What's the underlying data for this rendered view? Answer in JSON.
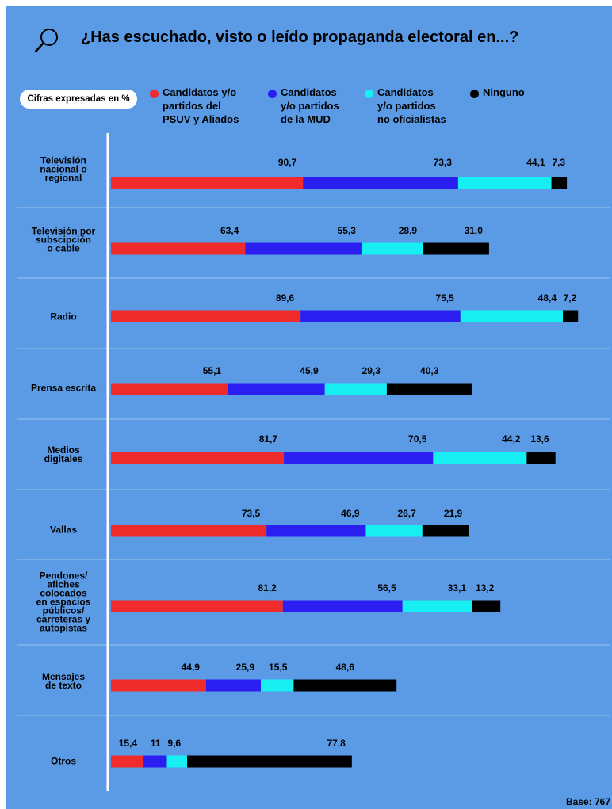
{
  "title": "¿Has escuchado, visto o leído propaganda electoral en...?",
  "units_note": "Cifras expresadas en %",
  "base_note": "Base: 767",
  "icons": {
    "search": "search-icon"
  },
  "chart_data": {
    "type": "bar",
    "orientation": "horizontal",
    "stacked": true,
    "title": "¿Has escuchado, visto o leído propaganda electoral en...?",
    "categories": [
      "Televisión\nnacional o\nregional",
      "Televisión por\nsubscipción\no cable",
      "Radio",
      "Prensa escrita",
      "Medios\ndigitales",
      "Vallas",
      "Pendones/\nafiches\ncolocados\nen espacios\npúblicos/\ncarreteras y\nautopistas",
      "Mensajes\nde texto",
      "Otros"
    ],
    "series": [
      {
        "name": "Candidatos y/o\npartidos del\nPSUV y Aliados",
        "color": "#F02B2B",
        "values": [
          90.7,
          63.4,
          89.6,
          55.1,
          81.7,
          73.5,
          81.2,
          44.9,
          15.4
        ]
      },
      {
        "name": "Candidatos\ny/o partidos\nde la MUD",
        "color": "#2A1FF0",
        "values": [
          73.3,
          55.3,
          75.5,
          45.9,
          70.5,
          46.9,
          56.5,
          25.9,
          11
        ]
      },
      {
        "name": "Candidatos\ny/o partidos\nno oficialistas",
        "color": "#16EEF2",
        "values": [
          44.1,
          28.9,
          48.4,
          29.3,
          44.2,
          26.7,
          33.1,
          15.5,
          9.6
        ]
      },
      {
        "name": "Ninguno",
        "color": "#000000",
        "values": [
          7.3,
          31.0,
          7.2,
          40.3,
          13.6,
          21.9,
          13.2,
          48.6,
          77.8
        ]
      }
    ],
    "value_labels": [
      [
        "90,7",
        "73,3",
        "44,1",
        "7,3"
      ],
      [
        "63,4",
        "55,3",
        "28,9",
        "31,0"
      ],
      [
        "89,6",
        "75,5",
        "48,4",
        "7,2"
      ],
      [
        "55,1",
        "45,9",
        "29,3",
        "40,3"
      ],
      [
        "81,7",
        "70,5",
        "44,2",
        "13,6"
      ],
      [
        "73,5",
        "46,9",
        "26,7",
        "21,9"
      ],
      [
        "81,2",
        "56,5",
        "33,1",
        "13,2"
      ],
      [
        "44,9",
        "25,9",
        "15,5",
        "48,6"
      ],
      [
        "15,4",
        "11",
        "9,6",
        "77,8"
      ]
    ],
    "legend_position": "top",
    "grid": false
  }
}
